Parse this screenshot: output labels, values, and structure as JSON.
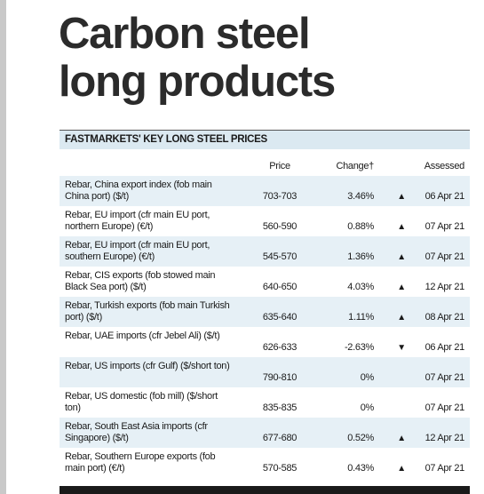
{
  "title": [
    "Carbon steel",
    "long products"
  ],
  "table": {
    "caption": "FASTMARKETS' KEY LONG STEEL PRICES",
    "columns": [
      "Price",
      "Change†",
      "Assessed"
    ],
    "rows": [
      [
        "Rebar, China export index (fob main China port) ($/t)",
        "703-703",
        "3.46%",
        "▲",
        "06 Apr 21"
      ],
      [
        "Rebar, EU import (cfr main EU port, northern Europe) (€/t)",
        "560-590",
        "0.88%",
        "▲",
        "07 Apr 21"
      ],
      [
        "Rebar, EU import (cfr main EU port, southern Europe) (€/t)",
        "545-570",
        "1.36%",
        "▲",
        "07 Apr 21"
      ],
      [
        "Rebar, CIS exports (fob stowed main Black Sea port) ($/t)",
        "640-650",
        "4.03%",
        "▲",
        "12 Apr 21"
      ],
      [
        "Rebar, Turkish exports (fob main Turkish port) ($/t)",
        "635-640",
        "1.11%",
        "▲",
        "08 Apr 21"
      ],
      [
        "Rebar, UAE imports (cfr Jebel Ali) ($/t)",
        "626-633",
        "-2.63%",
        "▼",
        "06 Apr 21"
      ],
      [
        "Rebar, US imports (cfr Gulf) ($/short ton)",
        "790-810",
        "0%",
        null,
        "07 Apr 21"
      ],
      [
        "Rebar, US domestic (fob mill) ($/short ton)",
        "835-835",
        "0%",
        null,
        "07 Apr 21"
      ],
      [
        "Rebar, South East Asia imports (cfr Singapore) ($/t)",
        "677-680",
        "0.52%",
        "▲",
        "12 Apr 21"
      ],
      [
        "Rebar, Southern Europe exports (fob main port) (€/t)",
        "570-585",
        "0.43%",
        "▲",
        "07 Apr 21"
      ]
    ]
  }
}
